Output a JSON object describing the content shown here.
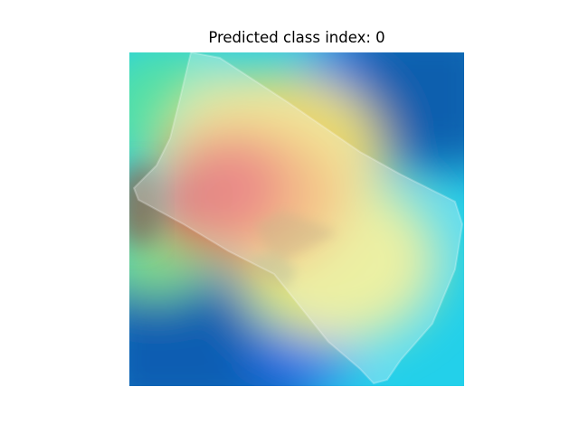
{
  "figure": {
    "title": "Predicted class index: 0"
  },
  "image": {
    "description_icon": "heatmap-overlay-image",
    "colors": {
      "deep_blue": "#0a5fae",
      "bright_blue": "#1e6ff0",
      "cyan": "#2ad4ea",
      "green": "#6cea8a",
      "yellow": "#e8ec86",
      "orange": "#f0b060",
      "red": "#e86a5e"
    }
  }
}
